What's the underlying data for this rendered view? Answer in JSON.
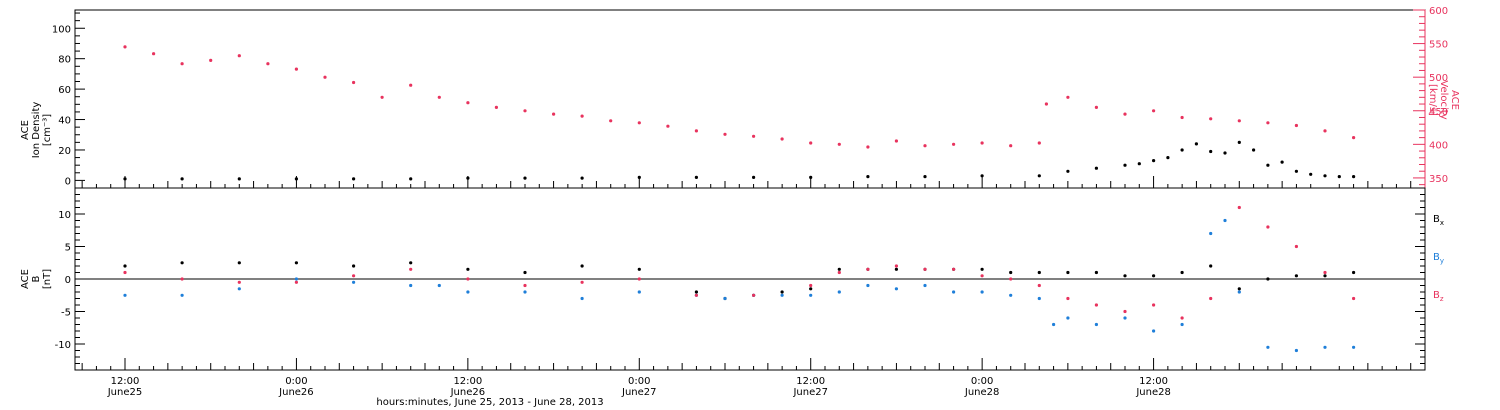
{
  "chart_data": [
    {
      "type": "scatter",
      "panel": "top",
      "ylabel_left": [
        "ACE",
        "Ion Density",
        "[cm⁻³]"
      ],
      "ylabel_right": [
        "ACE",
        "Velocity",
        "[km/s]"
      ],
      "ylim_left": [
        -5,
        112
      ],
      "ylim_right": [
        335,
        600
      ],
      "yticks_left": [
        "0",
        "20",
        "40",
        "60",
        "80",
        "100"
      ],
      "yticks_left_values": [
        0,
        20,
        40,
        60,
        80,
        100
      ],
      "yticks_right": [
        "350",
        "400",
        "450",
        "500",
        "550",
        "600"
      ],
      "yticks_right_values": [
        350,
        400,
        450,
        500,
        550,
        600
      ],
      "series": [
        {
          "axis": "left",
          "color": "#000000",
          "x": [
            0,
            4,
            8,
            12,
            16,
            20,
            24,
            28,
            32,
            36,
            40,
            44,
            48,
            52,
            56,
            60,
            64,
            66,
            68,
            70,
            71,
            72,
            73,
            74,
            75,
            76,
            77,
            78,
            79,
            80,
            81,
            82,
            83,
            84,
            85,
            86
          ],
          "y": [
            1,
            1,
            1,
            1,
            1,
            1,
            1.5,
            1.5,
            1.5,
            2,
            2,
            2,
            2,
            2.5,
            2.5,
            3,
            3,
            6,
            8,
            10,
            11,
            13,
            15,
            20,
            24,
            19,
            18,
            25,
            20,
            10,
            12,
            6,
            4,
            3,
            2.5,
            2.5
          ]
        },
        {
          "axis": "right",
          "color": "#e8335e",
          "x": [
            0,
            2,
            4,
            6,
            8,
            10,
            12,
            14,
            16,
            18,
            20,
            22,
            24,
            26,
            28,
            30,
            32,
            34,
            36,
            38,
            40,
            42,
            44,
            46,
            48,
            50,
            52,
            54,
            56,
            58,
            60,
            62,
            64,
            64.5,
            66,
            68,
            70,
            72,
            74,
            76,
            78,
            80,
            82,
            84,
            86
          ],
          "y": [
            545,
            535,
            520,
            525,
            532,
            520,
            512,
            500,
            492,
            470,
            488,
            470,
            462,
            455,
            450,
            445,
            442,
            435,
            432,
            427,
            420,
            415,
            412,
            408,
            402,
            400,
            396,
            405,
            398,
            400,
            402,
            398,
            402,
            460,
            470,
            455,
            445,
            450,
            440,
            438,
            435,
            432,
            428,
            420,
            410
          ]
        }
      ]
    },
    {
      "type": "scatter",
      "panel": "bottom",
      "ylabel_left": [
        "ACE",
        "B",
        "[nT]"
      ],
      "ylim": [
        -14,
        14
      ],
      "yticks": [
        "-10",
        "-5",
        "0",
        "5",
        "10"
      ],
      "yticks_values": [
        -10,
        -5,
        0,
        5,
        10
      ],
      "legend": [
        "Bx",
        "By",
        "Bz"
      ],
      "legend_subscripts": [
        "x",
        "y",
        "z"
      ],
      "legend_base": "B",
      "series": [
        {
          "name": "Bx",
          "color": "#000000",
          "x": [
            0,
            4,
            8,
            12,
            16,
            20,
            24,
            28,
            32,
            36,
            40,
            42,
            44,
            46,
            48,
            50,
            52,
            54,
            56,
            58,
            60,
            62,
            64,
            66,
            68,
            70,
            72,
            74,
            76,
            78,
            80,
            82,
            84,
            86
          ],
          "y": [
            2,
            2.5,
            2.5,
            2.5,
            2,
            2.5,
            1.5,
            1,
            2,
            1.5,
            -2,
            -3,
            -2.5,
            -2,
            -1.5,
            1.5,
            1.5,
            1.5,
            1.5,
            1.5,
            1.5,
            1,
            1,
            1,
            1,
            0.5,
            0.5,
            1,
            2,
            -1.5,
            0,
            0.5,
            0.5,
            1
          ]
        },
        {
          "name": "By",
          "color": "#1f7fd9",
          "x": [
            0,
            4,
            8,
            12,
            16,
            20,
            22,
            24,
            28,
            32,
            36,
            40,
            42,
            44,
            46,
            48,
            50,
            52,
            54,
            56,
            58,
            60,
            62,
            64,
            65,
            66,
            68,
            70,
            72,
            74,
            76,
            77,
            78,
            80,
            82,
            84,
            86
          ],
          "y": [
            -2.5,
            -2.5,
            -1.5,
            0,
            -0.5,
            -1,
            -1,
            -2,
            -2,
            -3,
            -2,
            -2.5,
            -3,
            -2.5,
            -2.5,
            -2.5,
            -2,
            -1,
            -1.5,
            -1,
            -2,
            -2,
            -2.5,
            -3,
            -7,
            -6,
            -7,
            -6,
            -8,
            -7,
            7,
            9,
            -2,
            -10.5,
            -11,
            -10.5,
            -10.5
          ]
        },
        {
          "name": "Bz",
          "color": "#e8335e",
          "x": [
            0,
            4,
            8,
            12,
            16,
            20,
            24,
            28,
            32,
            36,
            40,
            44,
            48,
            50,
            52,
            54,
            56,
            58,
            60,
            62,
            64,
            66,
            68,
            70,
            72,
            74,
            76,
            78,
            80,
            82,
            84,
            86
          ],
          "y": [
            1,
            0,
            -0.5,
            -0.5,
            0.5,
            1.5,
            0,
            -1,
            -0.5,
            0,
            -2.5,
            -2.5,
            -1,
            1,
            1.5,
            2,
            1.5,
            1.5,
            0.5,
            0,
            -1,
            -3,
            -4,
            -5,
            -4,
            -6,
            -3,
            11,
            8,
            5,
            1,
            -3
          ]
        }
      ]
    }
  ],
  "x_axis": {
    "xlim": [
      -3.5,
      91
    ],
    "ticks": [
      {
        "x": 0,
        "time": "12:00",
        "date": "June25"
      },
      {
        "x": 12,
        "time": "0:00",
        "date": "June26"
      },
      {
        "x": 24,
        "time": "12:00",
        "date": "June26"
      },
      {
        "x": 36,
        "time": "0:00",
        "date": "June27"
      },
      {
        "x": 48,
        "time": "12:00",
        "date": "June27"
      },
      {
        "x": 60,
        "time": "0:00",
        "date": "June28"
      },
      {
        "x": 72,
        "time": "12:00",
        "date": "June28"
      }
    ],
    "xlabel": "hours:minutes, June 25, 2013 - June 28, 2013"
  },
  "colors": {
    "black": "#000000",
    "pink": "#e8335e",
    "blue": "#1f7fd9"
  }
}
